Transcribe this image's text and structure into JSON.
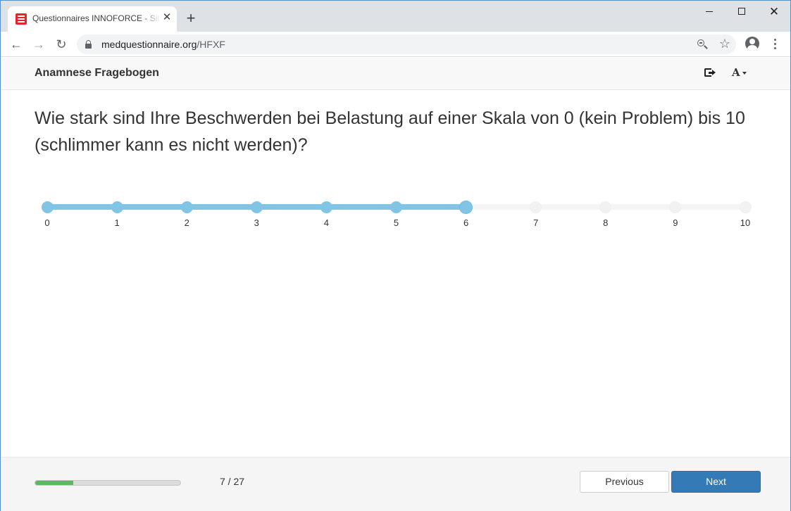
{
  "browser": {
    "tab_title": "Questionnaires INNOFORCE - Site",
    "url_domain": "medquestionnaire.org",
    "url_path": "/HFXF"
  },
  "app": {
    "title": "Anamnese Fragebogen",
    "logout_icon": "sign-out-icon",
    "font_size_icon": "font-size-icon",
    "font_size_glyph": "A"
  },
  "question": {
    "text": "Wie stark sind Ihre Beschwerden bei Belastung auf einer Skala von 0 (kein Problem) bis 10 (schlimmer kann es nicht werden)?"
  },
  "slider": {
    "min": 0,
    "max": 10,
    "value": 6,
    "ticks": [
      "0",
      "1",
      "2",
      "3",
      "4",
      "5",
      "6",
      "7",
      "8",
      "9",
      "10"
    ],
    "active_color": "#80c4e6"
  },
  "footer": {
    "progress_fraction": 0.26,
    "page_counter": "7 / 27",
    "previous_label": "Previous",
    "next_label": "Next",
    "progress_color": "#5cb85c",
    "primary_color": "#337ab7"
  }
}
